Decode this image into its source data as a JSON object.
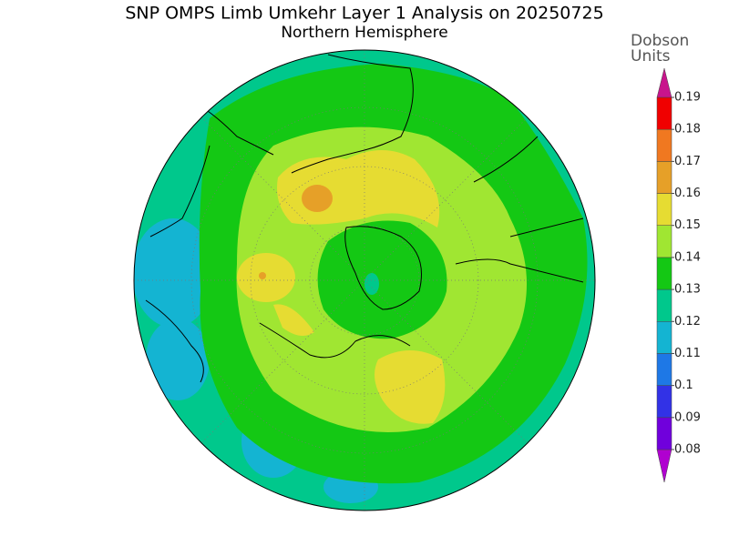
{
  "header": {
    "title": "SNP OMPS Limb Umkehr Layer 1 Analysis on 20250725",
    "subtitle": "Northern Hemisphere"
  },
  "colorbar": {
    "label": [
      "Dobson",
      "Units"
    ],
    "levels": [
      0.08,
      0.09,
      0.1,
      0.11,
      0.12,
      0.13,
      0.14,
      0.15,
      0.16,
      0.17,
      0.18,
      0.19
    ],
    "colors": [
      "#b000d0",
      "#7000dc",
      "#3232e6",
      "#1e78e6",
      "#14b4d2",
      "#00c88c",
      "#14c814",
      "#a0e632",
      "#e6dc32",
      "#e6a028",
      "#f07820",
      "#f00000",
      "#c8148c"
    ]
  }
}
